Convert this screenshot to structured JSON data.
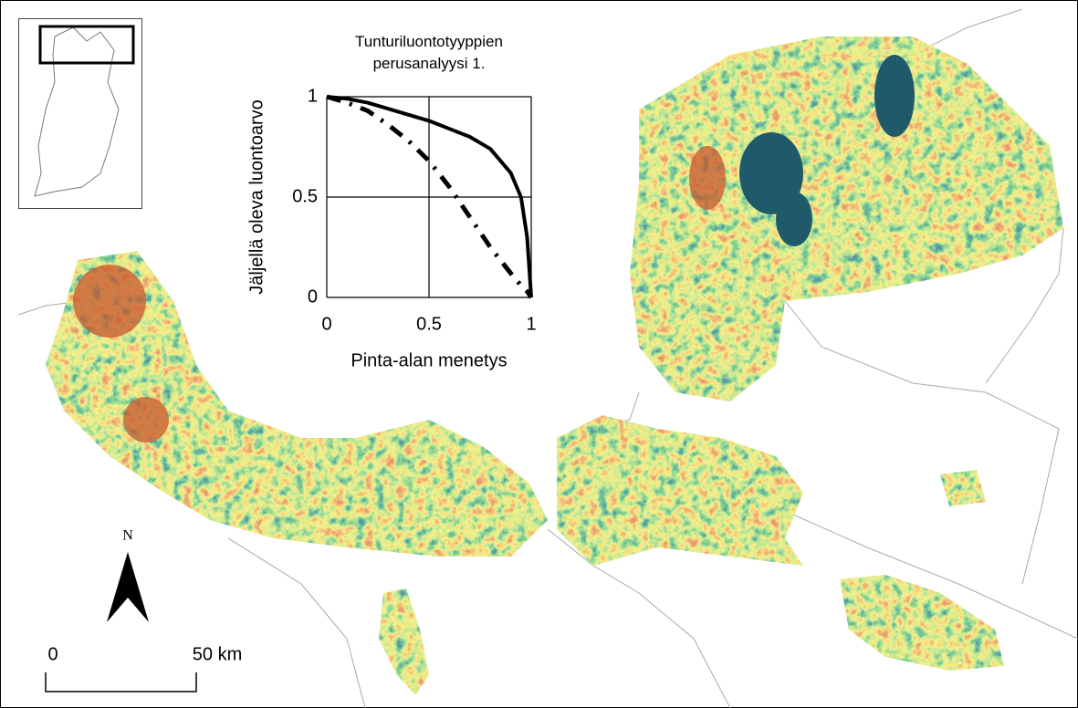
{
  "chart_data": {
    "type": "line",
    "title": "Tunturiluontotyyppien perusanalyysi 1.",
    "xlabel": "Pinta-alan menetys",
    "ylabel": "Jäljellä oleva luontoarvo",
    "x": [
      0,
      0.1,
      0.2,
      0.3,
      0.4,
      0.5,
      0.6,
      0.7,
      0.8,
      0.9,
      0.95,
      0.98,
      1
    ],
    "series": [
      {
        "color": "#000000",
        "style": "solid",
        "values": [
          1,
          0.99,
          0.97,
          0.94,
          0.91,
          0.88,
          0.84,
          0.8,
          0.74,
          0.62,
          0.5,
          0.3,
          0
        ]
      },
      {
        "color": "#000000",
        "style": "dashdot",
        "values": [
          1,
          0.97,
          0.93,
          0.86,
          0.78,
          0.68,
          0.55,
          0.4,
          0.25,
          0.12,
          0.06,
          0.03,
          0
        ]
      }
    ],
    "xlim": [
      0,
      1
    ],
    "ylim": [
      0,
      1
    ],
    "xticks": [
      0,
      0.5,
      1
    ],
    "yticks": [
      0,
      0.5,
      1
    ],
    "grid": true
  },
  "map": {
    "north_label": "N",
    "scale_labels": [
      "0",
      "50 km"
    ]
  }
}
